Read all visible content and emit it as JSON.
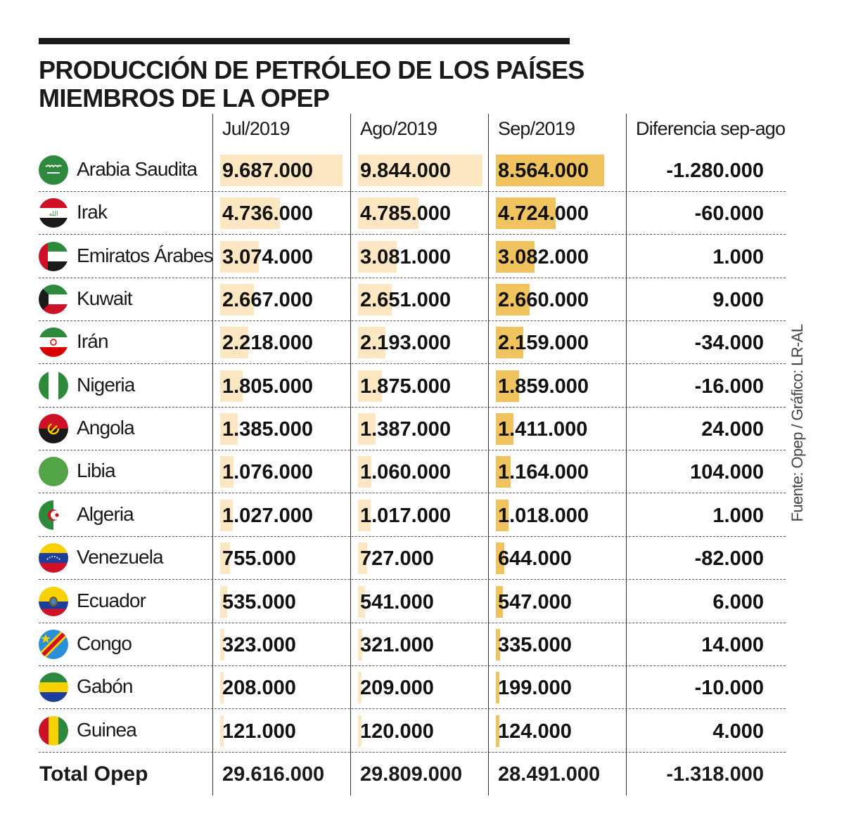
{
  "title_lines": [
    "PRODUCCIÓN DE PETRÓLEO DE LOS PAÍSES",
    "MIEMBROS DE LA OPEP"
  ],
  "columns": [
    "Jul/2019",
    "Ago/2019",
    "Sep/2019",
    "Diferencia sep-ago"
  ],
  "source": "Fuente: Opep / Gráfico: LR-AL",
  "colors": {
    "bar_light": "#fde7c2",
    "bar_dark": "#f0c35e",
    "text": "#1a1a1a"
  },
  "chart_data": {
    "type": "table",
    "title": "PRODUCCIÓN DE PETRÓLEO DE LOS PAÍSES MIEMBROS DE LA OPEP",
    "bar_scale_max": 10000000,
    "rows": [
      {
        "country": "Arabia Saudita",
        "flag": "saudi-arabia-flag-icon",
        "jul": "9.687.000",
        "ago": "9.844.000",
        "sep": "8.564.000",
        "diff": "-1.280.000",
        "jul_value": 9687000,
        "ago_value": 9844000,
        "sep_value": 8564000
      },
      {
        "country": "Irak",
        "flag": "iraq-flag-icon",
        "jul": "4.736.000",
        "ago": "4.785.000",
        "sep": "4.724.000",
        "diff": "-60.000",
        "jul_value": 4736000,
        "ago_value": 4785000,
        "sep_value": 4724000
      },
      {
        "country": "Emiratos Árabes",
        "flag": "uae-flag-icon",
        "jul": "3.074.000",
        "ago": "3.081.000",
        "sep": "3.082.000",
        "diff": "1.000",
        "jul_value": 3074000,
        "ago_value": 3081000,
        "sep_value": 3082000
      },
      {
        "country": "Kuwait",
        "flag": "kuwait-flag-icon",
        "jul": "2.667.000",
        "ago": "2.651.000",
        "sep": "2.660.000",
        "diff": "9.000",
        "jul_value": 2667000,
        "ago_value": 2651000,
        "sep_value": 2660000
      },
      {
        "country": "Irán",
        "flag": "iran-flag-icon",
        "jul": "2.218.000",
        "ago": "2.193.000",
        "sep": "2.159.000",
        "diff": "-34.000",
        "jul_value": 2218000,
        "ago_value": 2193000,
        "sep_value": 2159000
      },
      {
        "country": "Nigeria",
        "flag": "nigeria-flag-icon",
        "jul": "1.805.000",
        "ago": "1.875.000",
        "sep": "1.859.000",
        "diff": "-16.000",
        "jul_value": 1805000,
        "ago_value": 1875000,
        "sep_value": 1859000
      },
      {
        "country": "Angola",
        "flag": "angola-flag-icon",
        "jul": "1.385.000",
        "ago": "1.387.000",
        "sep": "1.411.000",
        "diff": "24.000",
        "jul_value": 1385000,
        "ago_value": 1387000,
        "sep_value": 1411000
      },
      {
        "country": "Libia",
        "flag": "libya-flag-icon",
        "jul": "1.076.000",
        "ago": "1.060.000",
        "sep": "1.164.000",
        "diff": "104.000",
        "jul_value": 1076000,
        "ago_value": 1060000,
        "sep_value": 1164000
      },
      {
        "country": "Algeria",
        "flag": "algeria-flag-icon",
        "jul": "1.027.000",
        "ago": "1.017.000",
        "sep": "1.018.000",
        "diff": "1.000",
        "jul_value": 1027000,
        "ago_value": 1017000,
        "sep_value": 1018000
      },
      {
        "country": "Venezuela",
        "flag": "venezuela-flag-icon",
        "jul": "755.000",
        "ago": "727.000",
        "sep": "644.000",
        "diff": "-82.000",
        "jul_value": 755000,
        "ago_value": 727000,
        "sep_value": 644000
      },
      {
        "country": "Ecuador",
        "flag": "ecuador-flag-icon",
        "jul": "535.000",
        "ago": "541.000",
        "sep": "547.000",
        "diff": "6.000",
        "jul_value": 535000,
        "ago_value": 541000,
        "sep_value": 547000
      },
      {
        "country": "Congo",
        "flag": "congo-flag-icon",
        "jul": "323.000",
        "ago": "321.000",
        "sep": "335.000",
        "diff": "14.000",
        "jul_value": 323000,
        "ago_value": 321000,
        "sep_value": 335000
      },
      {
        "country": "Gabón",
        "flag": "gabon-flag-icon",
        "jul": "208.000",
        "ago": "209.000",
        "sep": "199.000",
        "diff": "-10.000",
        "jul_value": 208000,
        "ago_value": 209000,
        "sep_value": 199000
      },
      {
        "country": "Guinea",
        "flag": "guinea-flag-icon",
        "jul": "121.000",
        "ago": "120.000",
        "sep": "124.000",
        "diff": "4.000",
        "jul_value": 121000,
        "ago_value": 120000,
        "sep_value": 124000
      }
    ],
    "total": {
      "label": "Total Opep",
      "jul": "29.616.000",
      "ago": "29.809.000",
      "sep": "28.491.000",
      "diff": "-1.318.000"
    }
  }
}
